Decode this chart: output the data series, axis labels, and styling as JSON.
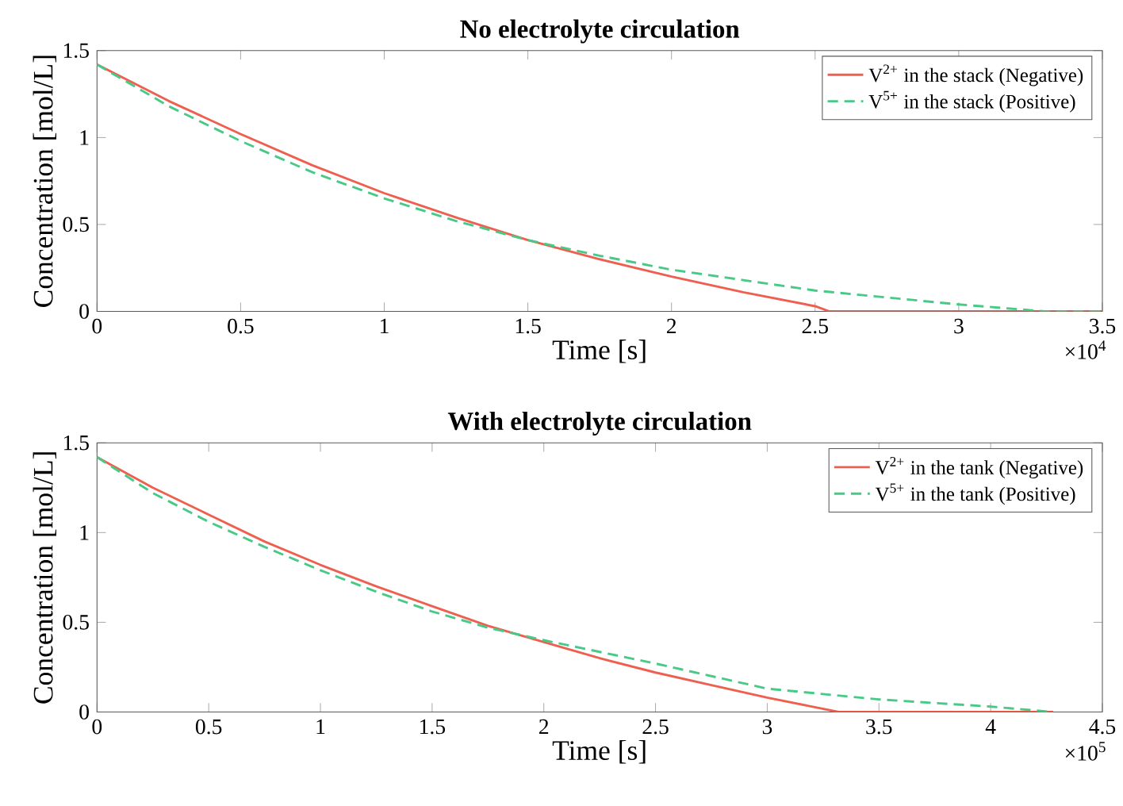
{
  "chart_data": [
    {
      "type": "line",
      "title": "No electrolyte circulation",
      "xlabel": "Time [s]",
      "ylabel": "Concentration [mol/L]",
      "annotations": [
        "×10$^{4}$"
      ],
      "legend": "top right",
      "xlim": [
        0,
        3.5
      ],
      "xticks": [
        0,
        0.5,
        1,
        1.5,
        2,
        2.5,
        3,
        3.5
      ],
      "ylim": [
        0,
        1.5
      ],
      "yticks": [
        0,
        0.5,
        1,
        1.5
      ],
      "series": [
        {
          "name": "V$^{2+}$ in the stack (Negative)",
          "color": "#ee5f4f",
          "line_style": "solid",
          "x": [
            0,
            0.25,
            0.5,
            0.75,
            1,
            1.25,
            1.5,
            1.75,
            2,
            2.25,
            2.5,
            2.55,
            3.5
          ],
          "values": [
            1.42,
            1.21,
            1.02,
            0.84,
            0.68,
            0.54,
            0.41,
            0.3,
            0.2,
            0.11,
            0.03,
            0,
            0
          ]
        },
        {
          "name": "V$^{5+}$ in the stack (Positive)",
          "color": "#48c987",
          "line_style": "dashed",
          "x": [
            0,
            0.25,
            0.5,
            0.75,
            1,
            1.25,
            1.5,
            1.75,
            2,
            2.25,
            2.5,
            2.75,
            3,
            3.3,
            3.5
          ],
          "values": [
            1.42,
            1.18,
            0.98,
            0.8,
            0.65,
            0.52,
            0.41,
            0.32,
            0.24,
            0.18,
            0.12,
            0.08,
            0.04,
            0,
            0
          ]
        }
      ]
    },
    {
      "type": "line",
      "title": "With electrolyte circulation",
      "xlabel": "Time [s]",
      "ylabel": "Concentration [mol/L]",
      "annotations": [
        "×10$^{5}$"
      ],
      "legend": "top right",
      "xlim": [
        0,
        4.5
      ],
      "xticks": [
        0,
        0.5,
        1,
        1.5,
        2,
        2.5,
        3,
        3.5,
        4,
        4.5
      ],
      "ylim": [
        0,
        1.5
      ],
      "yticks": [
        0,
        0.5,
        1,
        1.5
      ],
      "series": [
        {
          "name": "V$^{2+}$ in the tank (Negative)",
          "color": "#ee5f4f",
          "line_style": "solid",
          "x": [
            0,
            0.25,
            0.5,
            0.75,
            1,
            1.25,
            1.5,
            1.75,
            2,
            2.25,
            2.5,
            2.75,
            3,
            3.32,
            4.28
          ],
          "values": [
            1.42,
            1.25,
            1.1,
            0.95,
            0.82,
            0.7,
            0.59,
            0.48,
            0.39,
            0.3,
            0.22,
            0.15,
            0.08,
            0,
            0
          ]
        },
        {
          "name": "V$^{5+}$ in the tank (Positive)",
          "color": "#48c987",
          "line_style": "dashed",
          "x": [
            0,
            0.25,
            0.5,
            0.75,
            1,
            1.25,
            1.5,
            1.75,
            2,
            2.5,
            3,
            3.5,
            4,
            4.28
          ],
          "values": [
            1.42,
            1.22,
            1.06,
            0.92,
            0.79,
            0.67,
            0.56,
            0.47,
            0.4,
            0.27,
            0.13,
            0.07,
            0.03,
            0
          ]
        }
      ]
    }
  ]
}
